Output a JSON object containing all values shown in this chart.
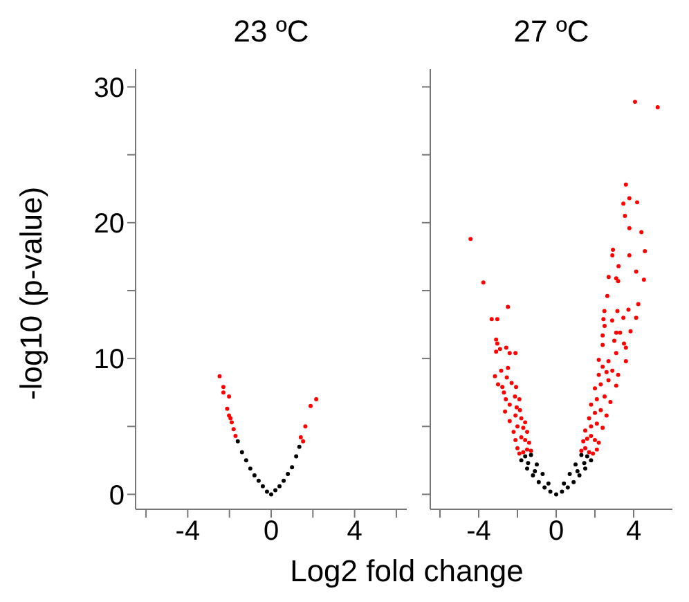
{
  "chart_data": [
    {
      "type": "scatter",
      "title": "23 ºC",
      "xlabel": "Log2 fold change",
      "ylabel": "-log10 (p-value)",
      "marker": "circle",
      "xlim": [
        -6.5,
        6.5
      ],
      "xticks": [
        {
          "value": -6,
          "label": null
        },
        -4,
        {
          "value": -2,
          "label": null
        },
        0,
        {
          "value": 2,
          "label": null
        },
        4,
        {
          "value": 6,
          "label": null
        }
      ],
      "ylim": [
        -1.1,
        31.3
      ],
      "yticks": [
        0,
        {
          "value": 5,
          "label": null
        },
        10,
        {
          "value": 15,
          "label": null
        },
        20,
        {
          "value": 25,
          "label": null
        },
        30
      ],
      "series": [
        {
          "color": "#000000",
          "x": [
            -1.6,
            -1.4,
            -1.2,
            -1.0,
            -0.8,
            -0.6,
            -0.4,
            -0.2,
            0,
            0.2,
            0.4,
            0.6,
            0.8,
            1.0,
            1.2,
            1.35
          ],
          "values": [
            3.9,
            3.1,
            2.5,
            1.9,
            1.4,
            1.0,
            0.6,
            0.2,
            0,
            0.3,
            0.6,
            1.0,
            1.5,
            2.0,
            2.8,
            3.5
          ]
        },
        {
          "color": "#ff0000",
          "x": [
            -2.47,
            -2.29,
            -2.29,
            -2.02,
            -2.11,
            -2.02,
            -1.89,
            -1.8,
            -1.71,
            -1.95,
            2.16,
            1.89,
            1.64,
            1.42,
            1.53
          ],
          "values": [
            8.7,
            7.9,
            7.5,
            7.2,
            6.3,
            5.8,
            5.3,
            4.8,
            4.3,
            5.6,
            7.0,
            6.5,
            5.0,
            4.2,
            3.9
          ]
        }
      ]
    },
    {
      "type": "scatter",
      "title": "27 ºC",
      "marker": "circle",
      "tick_labels": "x",
      "xlim": [
        -6.5,
        6
      ],
      "xticks": [
        {
          "value": -6,
          "label": null
        },
        -4,
        {
          "value": -2,
          "label": null
        },
        0,
        {
          "value": 2,
          "label": null
        },
        4
      ],
      "ylim": [
        -1.1,
        31.3
      ],
      "yticks": [
        0,
        {
          "value": 5,
          "label": null
        },
        10,
        {
          "value": 15,
          "label": null
        },
        20,
        {
          "value": 25,
          "label": null
        },
        30
      ],
      "series": [
        {
          "color": "#000000",
          "x": [
            0,
            -0.3,
            -0.6,
            -0.9,
            -1.2,
            -1.5,
            -1.8,
            -0.4,
            -0.7,
            -1.0,
            -1.3,
            -1.6,
            -1.1,
            -1.45,
            0.3,
            0.6,
            0.9,
            1.2,
            1.5,
            1.8,
            0.4,
            0.7,
            1.0,
            1.3,
            1.6,
            1.1,
            1.45
          ],
          "values": [
            0,
            0.2,
            0.5,
            0.9,
            1.4,
            1.9,
            2.5,
            0.8,
            1.5,
            2.2,
            2.9,
            2.8,
            1.7,
            2.3,
            0.2,
            0.5,
            0.9,
            1.4,
            1.9,
            2.5,
            0.8,
            1.5,
            2.2,
            2.9,
            2.8,
            1.7,
            2.3
          ]
        },
        {
          "color": "#ff0000",
          "x": [
            -4.42,
            -3.76,
            -2.49,
            -3.33,
            -3.04,
            -3.1,
            -3.04,
            -3.1,
            -2.9,
            -2.58,
            -2.4,
            -2.1,
            -2.84,
            -2.49,
            -2.55,
            -3.16,
            -2.3,
            -3.0,
            -2.78,
            -2.07,
            -2.13,
            -2.4,
            -2.04,
            -2.64,
            -1.87,
            -1.3,
            -1.5,
            -1.7,
            -1.9,
            -2.0,
            -1.4,
            -1.6,
            -1.8,
            -2.1,
            -1.5,
            -1.7,
            -2.0,
            -2.2,
            -1.8,
            -2.1,
            -2.4,
            -1.6,
            -2.6,
            -1.9,
            -2.7,
            4.07,
            5.24,
            3.6,
            3.78,
            3.47,
            4.18,
            3.55,
            3.78,
            4.4,
            2.93,
            2.9,
            3.78,
            4.58,
            3.22,
            4.13,
            2.71,
            3.1,
            3.2,
            4.53,
            2.64,
            4.24,
            2.49,
            3.16,
            3.73,
            4.13,
            2.44,
            2.89,
            3.47,
            3.84,
            3.1,
            3.3,
            2.5,
            2.4,
            3.0,
            3.5,
            2.4,
            3.6,
            3.1,
            2.2,
            2.7,
            3.6,
            2.4,
            2.9,
            1.3,
            1.5,
            1.7,
            1.9,
            2.1,
            1.4,
            1.6,
            1.8,
            2.0,
            2.2,
            1.5,
            1.8,
            2.1,
            2.4,
            1.7,
            2.0,
            2.3,
            2.6,
            1.8,
            2.1,
            2.5,
            2.8,
            2.0,
            2.3,
            2.7,
            3.1,
            2.2,
            2.6,
            3.2
          ],
          "values": [
            18.8,
            15.6,
            13.8,
            12.9,
            12.9,
            11.4,
            11.1,
            10.5,
            10.7,
            10.8,
            10.4,
            10.4,
            9.1,
            9.3,
            8.6,
            8.7,
            8.2,
            8.1,
            7.9,
            7.9,
            7.2,
            6.6,
            6.4,
            6.1,
            6.2,
            3.2,
            3.3,
            3.1,
            3.0,
            3.4,
            3.8,
            4.0,
            4.2,
            4.0,
            4.6,
            4.9,
            5.0,
            4.6,
            5.6,
            5.8,
            5.4,
            5.3,
            7.0,
            7.0,
            7.5,
            28.9,
            28.5,
            22.8,
            21.8,
            21.4,
            21.5,
            20.5,
            19.6,
            19.3,
            18.0,
            17.6,
            17.6,
            17.9,
            16.8,
            16.4,
            16.0,
            15.9,
            15.7,
            15.8,
            14.6,
            14.0,
            13.5,
            13.5,
            13.6,
            13.0,
            12.9,
            12.8,
            13.0,
            12.0,
            11.9,
            11.9,
            12.4,
            11.7,
            11.3,
            11.1,
            11.0,
            10.8,
            10.4,
            9.9,
            9.8,
            9.8,
            9.4,
            9.1,
            3.2,
            3.4,
            3.1,
            3.0,
            3.3,
            3.9,
            4.1,
            4.3,
            4.0,
            3.8,
            4.7,
            5.0,
            5.2,
            4.9,
            5.6,
            6.0,
            6.2,
            5.8,
            6.6,
            7.0,
            7.2,
            6.8,
            7.8,
            8.1,
            8.4,
            8.0,
            8.8,
            9.0,
            8.8
          ]
        }
      ]
    }
  ]
}
